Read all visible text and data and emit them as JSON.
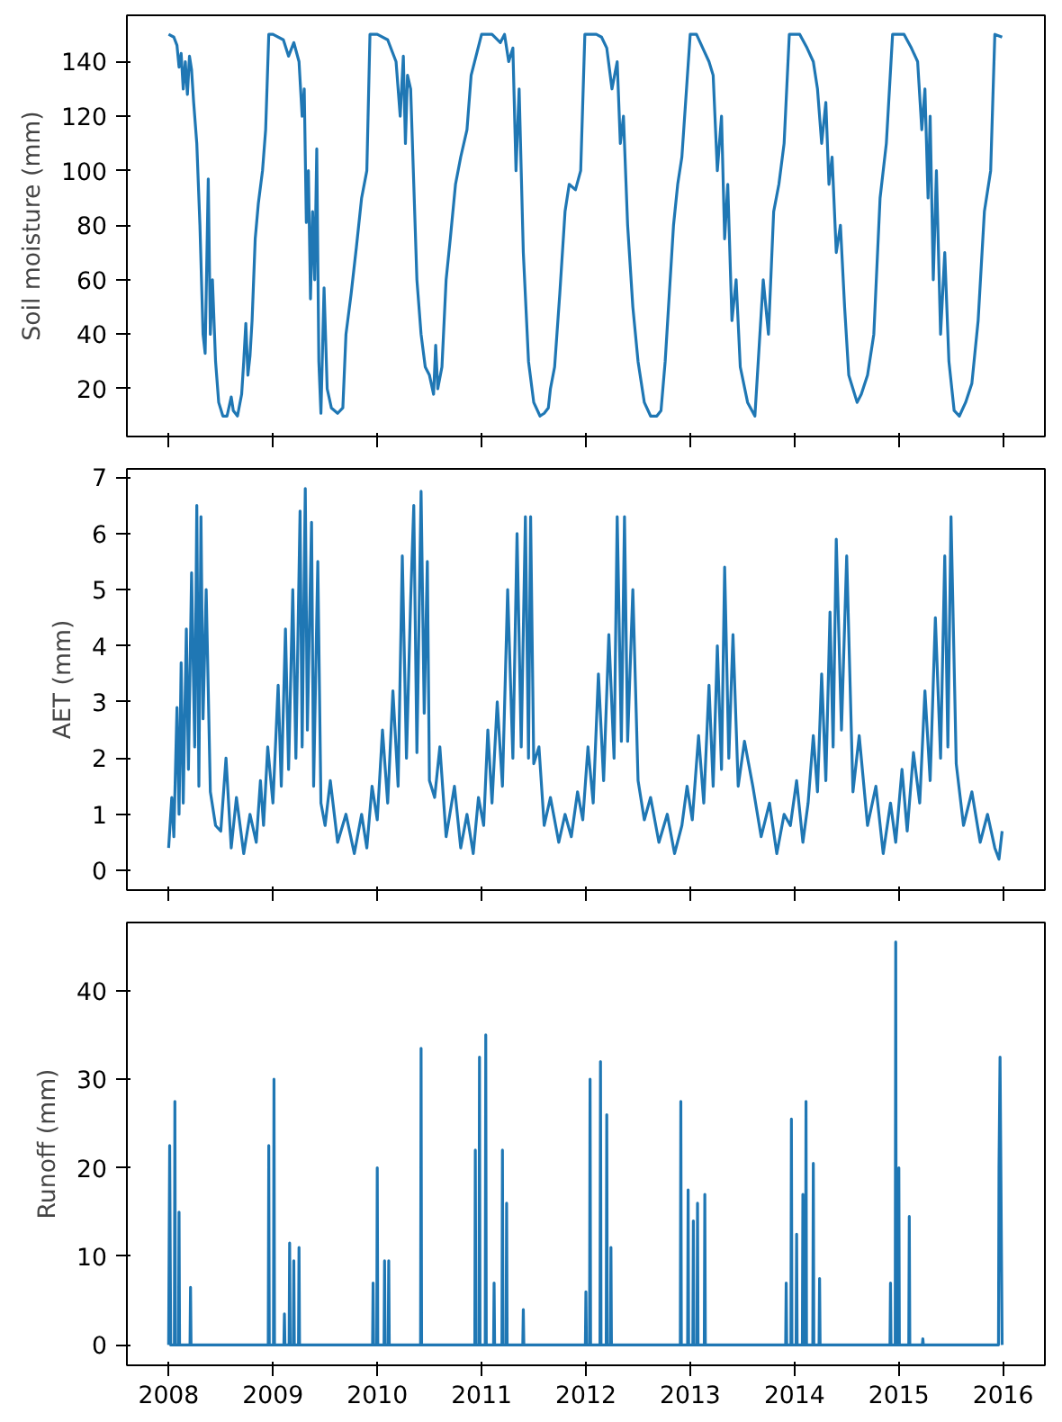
{
  "chart_data": [
    {
      "type": "line",
      "ylabel": "Soil moisture (mm)",
      "xlim": [
        2007.6,
        2016.4
      ],
      "xticks": [
        2008,
        2009,
        2010,
        2011,
        2012,
        2013,
        2014,
        2015,
        2016
      ],
      "ylim": [
        2.5,
        157
      ],
      "yticks": [
        20,
        40,
        60,
        80,
        100,
        120,
        140
      ],
      "grid": false,
      "tick_labels": "y",
      "series": [
        {
          "color": "#1f77b4",
          "x": [
            2008.0,
            2008.05,
            2008.08,
            2008.1,
            2008.12,
            2008.14,
            2008.16,
            2008.18,
            2008.2,
            2008.22,
            2008.24,
            2008.27,
            2008.3,
            2008.33,
            2008.35,
            2008.38,
            2008.4,
            2008.42,
            2008.45,
            2008.48,
            2008.52,
            2008.56,
            2008.6,
            2008.62,
            2008.66,
            2008.7,
            2008.72,
            2008.74,
            2008.76,
            2008.78,
            2008.8,
            2008.83,
            2008.86,
            2008.9,
            2008.93,
            2008.96,
            2009.0,
            2009.1,
            2009.15,
            2009.2,
            2009.25,
            2009.28,
            2009.3,
            2009.32,
            2009.34,
            2009.36,
            2009.38,
            2009.4,
            2009.42,
            2009.44,
            2009.46,
            2009.49,
            2009.52,
            2009.56,
            2009.62,
            2009.67,
            2009.7,
            2009.75,
            2009.8,
            2009.85,
            2009.9,
            2009.93,
            2010.0,
            2010.1,
            2010.18,
            2010.22,
            2010.25,
            2010.27,
            2010.29,
            2010.32,
            2010.35,
            2010.38,
            2010.42,
            2010.46,
            2010.5,
            2010.54,
            2010.56,
            2010.58,
            2010.62,
            2010.66,
            2010.7,
            2010.75,
            2010.8,
            2010.86,
            2010.9,
            2011.0,
            2011.1,
            2011.18,
            2011.22,
            2011.26,
            2011.3,
            2011.33,
            2011.36,
            2011.4,
            2011.45,
            2011.5,
            2011.56,
            2011.6,
            2011.64,
            2011.66,
            2011.7,
            2011.75,
            2011.8,
            2011.84,
            2011.9,
            2011.95,
            2011.99,
            2012.1,
            2012.15,
            2012.2,
            2012.25,
            2012.3,
            2012.33,
            2012.36,
            2012.4,
            2012.45,
            2012.5,
            2012.56,
            2012.62,
            2012.68,
            2012.72,
            2012.76,
            2012.8,
            2012.84,
            2012.88,
            2012.92,
            2013.0,
            2013.06,
            2013.12,
            2013.18,
            2013.22,
            2013.26,
            2013.3,
            2013.33,
            2013.36,
            2013.4,
            2013.44,
            2013.48,
            2013.55,
            2013.62,
            2013.7,
            2013.75,
            2013.8,
            2013.85,
            2013.9,
            2013.95,
            2014.05,
            2014.12,
            2014.18,
            2014.22,
            2014.26,
            2014.3,
            2014.33,
            2014.36,
            2014.4,
            2014.44,
            2014.48,
            2014.52,
            2014.56,
            2014.6,
            2014.64,
            2014.7,
            2014.76,
            2014.82,
            2014.88,
            2014.94,
            2015.05,
            2015.12,
            2015.18,
            2015.22,
            2015.25,
            2015.28,
            2015.3,
            2015.33,
            2015.36,
            2015.4,
            2015.44,
            2015.48,
            2015.53,
            2015.58,
            2015.64,
            2015.7,
            2015.76,
            2015.82,
            2015.88,
            2015.92,
            2015.99
          ],
          "values": [
            150,
            149,
            146,
            138,
            143,
            130,
            140,
            128,
            142,
            137,
            125,
            110,
            80,
            40,
            33,
            97,
            40,
            60,
            30,
            15,
            10,
            10,
            17,
            12,
            10,
            18,
            30,
            44,
            25,
            32,
            45,
            75,
            88,
            100,
            115,
            150,
            150,
            148,
            142,
            147,
            140,
            120,
            130,
            81,
            100,
            53,
            85,
            60,
            108,
            30,
            11,
            57,
            20,
            13,
            11,
            13,
            40,
            55,
            72,
            90,
            100,
            150,
            150,
            148,
            140,
            120,
            142,
            110,
            135,
            130,
            95,
            60,
            40,
            28,
            25,
            18,
            36,
            20,
            28,
            60,
            75,
            95,
            105,
            115,
            135,
            150,
            150,
            147,
            150,
            140,
            145,
            100,
            130,
            70,
            30,
            15,
            10,
            11,
            13,
            20,
            28,
            55,
            85,
            95,
            93,
            100,
            150,
            150,
            149,
            145,
            130,
            140,
            110,
            120,
            80,
            50,
            30,
            15,
            10,
            10,
            12,
            30,
            55,
            80,
            95,
            105,
            150,
            150,
            145,
            140,
            135,
            100,
            120,
            75,
            95,
            45,
            60,
            28,
            15,
            10,
            60,
            40,
            85,
            95,
            110,
            150,
            150,
            145,
            140,
            130,
            110,
            125,
            95,
            105,
            70,
            80,
            50,
            25,
            20,
            15,
            18,
            25,
            40,
            90,
            110,
            150,
            150,
            145,
            140,
            115,
            130,
            90,
            120,
            60,
            100,
            40,
            70,
            30,
            12,
            10,
            15,
            22,
            45,
            85,
            100,
            150,
            149
          ]
        }
      ]
    },
    {
      "type": "line",
      "ylabel": "AET (mm)",
      "xlim": [
        2007.6,
        2016.4
      ],
      "xticks": [
        2008,
        2009,
        2010,
        2011,
        2012,
        2013,
        2014,
        2015,
        2016
      ],
      "ylim": [
        -0.35,
        7.15
      ],
      "yticks": [
        0,
        1,
        2,
        3,
        4,
        5,
        6,
        7
      ],
      "grid": false,
      "tick_labels": "y",
      "series": [
        {
          "color": "#1f77b4",
          "x": [
            2008.0,
            2008.03,
            2008.05,
            2008.08,
            2008.1,
            2008.12,
            2008.14,
            2008.17,
            2008.19,
            2008.22,
            2008.25,
            2008.27,
            2008.29,
            2008.31,
            2008.33,
            2008.36,
            2008.4,
            2008.45,
            2008.5,
            2008.55,
            2008.6,
            2008.65,
            2008.72,
            2008.78,
            2008.84,
            2008.88,
            2008.91,
            2008.95,
            2009.0,
            2009.05,
            2009.08,
            2009.12,
            2009.15,
            2009.19,
            2009.22,
            2009.26,
            2009.28,
            2009.31,
            2009.33,
            2009.37,
            2009.39,
            2009.43,
            2009.46,
            2009.5,
            2009.55,
            2009.62,
            2009.7,
            2009.78,
            2009.85,
            2009.9,
            2009.95,
            2010.0,
            2010.05,
            2010.1,
            2010.15,
            2010.2,
            2010.24,
            2010.28,
            2010.32,
            2010.35,
            2010.38,
            2010.42,
            2010.45,
            2010.48,
            2010.5,
            2010.55,
            2010.6,
            2010.66,
            2010.74,
            2010.8,
            2010.86,
            2010.92,
            2010.97,
            2011.02,
            2011.06,
            2011.1,
            2011.15,
            2011.2,
            2011.25,
            2011.3,
            2011.34,
            2011.38,
            2011.42,
            2011.45,
            2011.47,
            2011.5,
            2011.55,
            2011.6,
            2011.66,
            2011.74,
            2011.8,
            2011.86,
            2011.92,
            2011.97,
            2012.02,
            2012.07,
            2012.12,
            2012.17,
            2012.22,
            2012.27,
            2012.3,
            2012.34,
            2012.37,
            2012.4,
            2012.45,
            2012.5,
            2012.56,
            2012.62,
            2012.7,
            2012.78,
            2012.85,
            2012.92,
            2012.97,
            2013.02,
            2013.08,
            2013.13,
            2013.18,
            2013.22,
            2013.26,
            2013.3,
            2013.33,
            2013.37,
            2013.41,
            2013.46,
            2013.52,
            2013.6,
            2013.68,
            2013.76,
            2013.83,
            2013.9,
            2013.96,
            2014.02,
            2014.08,
            2014.13,
            2014.18,
            2014.22,
            2014.26,
            2014.3,
            2014.34,
            2014.37,
            2014.4,
            2014.45,
            2014.5,
            2014.56,
            2014.62,
            2014.7,
            2014.78,
            2014.85,
            2014.92,
            2014.97,
            2015.03,
            2015.08,
            2015.14,
            2015.2,
            2015.25,
            2015.3,
            2015.35,
            2015.4,
            2015.44,
            2015.47,
            2015.5,
            2015.55,
            2015.62,
            2015.7,
            2015.78,
            2015.85,
            2015.92,
            2015.96,
            2015.99
          ],
          "values": [
            0.4,
            1.3,
            0.6,
            2.9,
            1.0,
            3.7,
            1.2,
            4.3,
            1.8,
            5.3,
            2.2,
            6.5,
            1.5,
            6.3,
            2.7,
            5.0,
            1.4,
            0.8,
            0.7,
            2.0,
            0.4,
            1.3,
            0.3,
            1.0,
            0.5,
            1.6,
            0.8,
            2.2,
            1.2,
            3.3,
            1.5,
            4.3,
            1.8,
            5.0,
            2.0,
            6.4,
            2.2,
            6.8,
            2.5,
            6.2,
            1.5,
            5.5,
            1.2,
            0.8,
            1.6,
            0.5,
            1.0,
            0.3,
            1.0,
            0.4,
            1.5,
            0.9,
            2.5,
            1.2,
            3.2,
            1.5,
            5.6,
            2.0,
            4.8,
            6.5,
            2.1,
            6.75,
            2.8,
            5.5,
            1.6,
            1.3,
            2.2,
            0.6,
            1.5,
            0.4,
            1.0,
            0.3,
            1.3,
            0.8,
            2.5,
            1.2,
            3.0,
            1.5,
            5.0,
            2.0,
            6.0,
            2.2,
            6.3,
            2.0,
            6.3,
            1.9,
            2.2,
            0.8,
            1.3,
            0.5,
            1.0,
            0.6,
            1.4,
            0.9,
            2.2,
            1.2,
            3.5,
            1.6,
            4.2,
            2.0,
            6.3,
            2.3,
            6.3,
            2.3,
            5.0,
            1.6,
            0.9,
            1.3,
            0.5,
            1.0,
            0.3,
            0.8,
            1.5,
            0.9,
            2.4,
            1.2,
            3.3,
            1.5,
            4.0,
            1.8,
            5.4,
            2.0,
            4.2,
            1.5,
            2.3,
            1.5,
            0.6,
            1.2,
            0.3,
            1.0,
            0.8,
            1.6,
            0.5,
            1.2,
            2.4,
            1.4,
            3.5,
            1.6,
            4.6,
            2.2,
            5.9,
            2.5,
            5.6,
            1.4,
            2.4,
            0.8,
            1.5,
            0.3,
            1.2,
            0.5,
            1.8,
            0.7,
            2.1,
            1.2,
            3.2,
            1.6,
            4.5,
            2.0,
            5.6,
            2.2,
            6.3,
            1.9,
            0.8,
            1.4,
            0.5,
            1.0,
            0.4,
            0.2,
            0.7
          ]
        }
      ]
    },
    {
      "type": "line",
      "ylabel": "Runoff (mm)",
      "xlim": [
        2007.6,
        2016.4
      ],
      "xticks": [
        2008,
        2009,
        2010,
        2011,
        2012,
        2013,
        2014,
        2015,
        2016
      ],
      "ylim": [
        -2.3,
        47.7
      ],
      "yticks": [
        0,
        10,
        20,
        30,
        40
      ],
      "grid": false,
      "series": [
        {
          "color": "#1f77b4",
          "x": [
            2008.0,
            2008.01,
            2008.02,
            2008.055,
            2008.06,
            2008.065,
            2008.095,
            2008.1,
            2008.105,
            2008.205,
            2008.21,
            2008.215,
            2008.955,
            2008.96,
            2008.965,
            2009.005,
            2009.01,
            2009.015,
            2009.105,
            2009.11,
            2009.115,
            2009.155,
            2009.16,
            2009.165,
            2009.195,
            2009.2,
            2009.205,
            2009.245,
            2009.25,
            2009.255,
            2009.955,
            2009.96,
            2009.965,
            2009.995,
            2010.0,
            2010.005,
            2010.065,
            2010.07,
            2010.075,
            2010.105,
            2010.11,
            2010.115,
            2010.415,
            2010.42,
            2010.425,
            2010.935,
            2010.94,
            2010.945,
            2010.975,
            2010.98,
            2010.985,
            2011.035,
            2011.04,
            2011.045,
            2011.115,
            2011.12,
            2011.125,
            2011.195,
            2011.2,
            2011.205,
            2011.235,
            2011.24,
            2011.245,
            2011.395,
            2011.4,
            2011.405,
            2011.995,
            2012.0,
            2012.005,
            2012.035,
            2012.04,
            2012.045,
            2012.135,
            2012.14,
            2012.145,
            2012.195,
            2012.2,
            2012.205,
            2012.235,
            2012.24,
            2012.245,
            2012.905,
            2012.91,
            2012.915,
            2012.975,
            2012.98,
            2012.985,
            2013.025,
            2013.03,
            2013.035,
            2013.065,
            2013.07,
            2013.075,
            2013.135,
            2013.14,
            2013.145,
            2013.915,
            2013.92,
            2013.925,
            2013.965,
            2013.97,
            2013.975,
            2014.015,
            2014.02,
            2014.025,
            2014.075,
            2014.08,
            2014.085,
            2014.105,
            2014.11,
            2014.115,
            2014.175,
            2014.18,
            2014.185,
            2014.235,
            2014.24,
            2014.245,
            2014.915,
            2014.92,
            2014.925,
            2014.965,
            2014.97,
            2014.975,
            2014.995,
            2015.0,
            2015.005,
            2015.095,
            2015.1,
            2015.105,
            2015.225,
            2015.23,
            2015.235,
            2015.955,
            2015.96,
            2015.97,
            2015.99
          ],
          "values": [
            0,
            22.5,
            0,
            0,
            27.5,
            0,
            0,
            15,
            0,
            0,
            6.5,
            0,
            0,
            22.5,
            0,
            0,
            30,
            0,
            0,
            3.5,
            0,
            0,
            11.5,
            0,
            0,
            9.5,
            0,
            0,
            11,
            0,
            0,
            7,
            0,
            0,
            20,
            0,
            0,
            9.5,
            0,
            0,
            9.5,
            0,
            0,
            33.5,
            0,
            0,
            22,
            0,
            0,
            32.5,
            0,
            0,
            35,
            0,
            0,
            7,
            0,
            0,
            22,
            0,
            0,
            16,
            0,
            0,
            4,
            0,
            0,
            6,
            0,
            0,
            30,
            0,
            0,
            32,
            0,
            0,
            26,
            0,
            0,
            11,
            0,
            0,
            27.5,
            0,
            0,
            17.5,
            0,
            0,
            14,
            0,
            0,
            16,
            0,
            0,
            17,
            0,
            0,
            7,
            0,
            0,
            25.5,
            0,
            0,
            12.5,
            0,
            0,
            17,
            0,
            0,
            27.5,
            0,
            0,
            20.5,
            0,
            0,
            7.5,
            0,
            0,
            7,
            0,
            0,
            45.5,
            0,
            0,
            20,
            0,
            0,
            14.5,
            0,
            0,
            0.7,
            0,
            0,
            20,
            32.5,
            0
          ]
        }
      ]
    }
  ]
}
